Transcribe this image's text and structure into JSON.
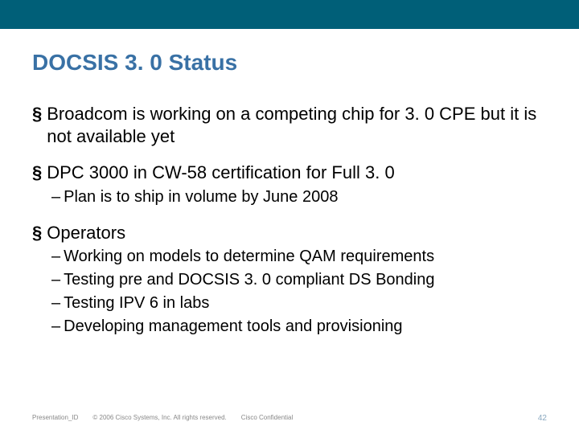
{
  "colors": {
    "topbar": "#005f78",
    "title": "#3971a5",
    "body_text": "#000000",
    "footer_text": "#888888",
    "pagenum": "#8aa8c0",
    "background": "#ffffff"
  },
  "title": "DOCSIS 3. 0 Status",
  "bullets": [
    {
      "text": "Broadcom is working on a competing chip for 3. 0 CPE but it is not available yet",
      "subs": []
    },
    {
      "text": "DPC 3000 in CW-58 certification for Full 3. 0",
      "subs": [
        "Plan is to ship in volume by June 2008"
      ]
    },
    {
      "text": "Operators",
      "subs": [
        "Working on models to determine QAM requirements",
        "Testing pre and DOCSIS 3. 0 compliant DS Bonding",
        "Testing IPV 6 in labs",
        "Developing management tools and provisioning"
      ]
    }
  ],
  "footer": {
    "presentation_id": "Presentation_ID",
    "copyright": "© 2006 Cisco Systems, Inc. All rights reserved.",
    "confidential": "Cisco Confidential",
    "page_number": "42"
  }
}
